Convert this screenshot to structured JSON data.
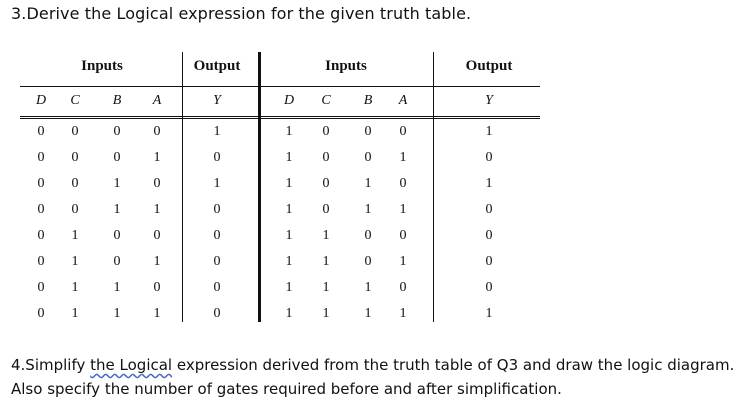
{
  "question3": "3.Derive the Logical expression for the given truth table.",
  "question4": {
    "line1_pre": "4.Simplify ",
    "line1_ul1": "the  Logical",
    "line1_post": " expression derived from the truth table of Q3 and draw the logic diagram.",
    "line2": "Also specify the number of gates required before and after simplification."
  },
  "table": {
    "group_inputs": "Inputs",
    "group_output": "Output",
    "columns": [
      "D",
      "C",
      "B",
      "A"
    ],
    "output_column": "Y",
    "left_rows": [
      {
        "D": "0",
        "C": "0",
        "B": "0",
        "A": "0",
        "Y": "1"
      },
      {
        "D": "0",
        "C": "0",
        "B": "0",
        "A": "1",
        "Y": "0"
      },
      {
        "D": "0",
        "C": "0",
        "B": "1",
        "A": "0",
        "Y": "1"
      },
      {
        "D": "0",
        "C": "0",
        "B": "1",
        "A": "1",
        "Y": "0"
      },
      {
        "D": "0",
        "C": "1",
        "B": "0",
        "A": "0",
        "Y": "0"
      },
      {
        "D": "0",
        "C": "1",
        "B": "0",
        "A": "1",
        "Y": "0"
      },
      {
        "D": "0",
        "C": "1",
        "B": "1",
        "A": "0",
        "Y": "0"
      },
      {
        "D": "0",
        "C": "1",
        "B": "1",
        "A": "1",
        "Y": "0"
      }
    ],
    "right_rows": [
      {
        "D": "1",
        "C": "0",
        "B": "0",
        "A": "0",
        "Y": "1"
      },
      {
        "D": "1",
        "C": "0",
        "B": "0",
        "A": "1",
        "Y": "0"
      },
      {
        "D": "1",
        "C": "0",
        "B": "1",
        "A": "0",
        "Y": "1"
      },
      {
        "D": "1",
        "C": "0",
        "B": "1",
        "A": "1",
        "Y": "0"
      },
      {
        "D": "1",
        "C": "1",
        "B": "0",
        "A": "0",
        "Y": "0"
      },
      {
        "D": "1",
        "C": "1",
        "B": "0",
        "A": "1",
        "Y": "0"
      },
      {
        "D": "1",
        "C": "1",
        "B": "1",
        "A": "0",
        "Y": "0"
      },
      {
        "D": "1",
        "C": "1",
        "B": "1",
        "A": "1",
        "Y": "1"
      }
    ]
  }
}
